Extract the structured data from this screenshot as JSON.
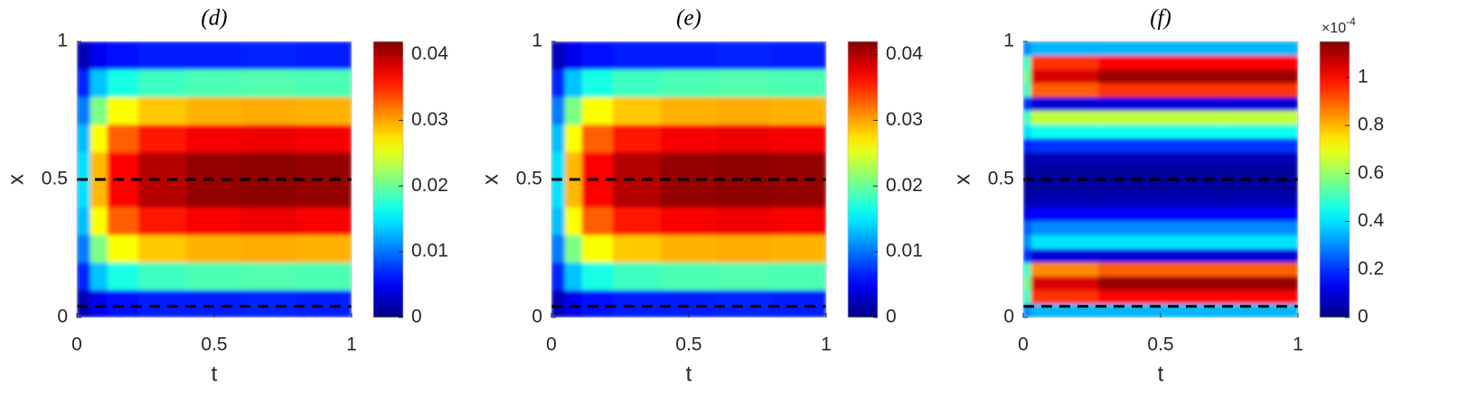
{
  "chart_data": [
    {
      "type": "heatmap",
      "title": "(d)",
      "xlabel": "t",
      "ylabel": "x",
      "colormap": "jet",
      "x": [
        0.025,
        0.075,
        0.15,
        0.3,
        0.5,
        0.7,
        0.9
      ],
      "y": [
        0.05,
        0.15,
        0.25,
        0.35,
        0.45,
        0.55,
        0.65,
        0.75,
        0.85,
        0.95
      ],
      "values": [
        [
          0.0023,
          0.0046,
          0.0058,
          0.0063,
          0.0065,
          0.0066,
          0.0065
        ],
        [
          0.0067,
          0.0133,
          0.0168,
          0.0183,
          0.0189,
          0.0191,
          0.0189
        ],
        [
          0.0104,
          0.0208,
          0.0261,
          0.0285,
          0.0294,
          0.0297,
          0.0294
        ],
        [
          0.0131,
          0.0262,
          0.0329,
          0.0359,
          0.037,
          0.0374,
          0.037
        ],
        [
          0.0145,
          0.0291,
          0.0365,
          0.0398,
          0.0411,
          0.0415,
          0.0411
        ],
        [
          0.0145,
          0.0291,
          0.0365,
          0.0398,
          0.0411,
          0.0415,
          0.0411
        ],
        [
          0.0131,
          0.0262,
          0.0329,
          0.0359,
          0.037,
          0.0374,
          0.037
        ],
        [
          0.0104,
          0.0208,
          0.0261,
          0.0285,
          0.0294,
          0.0297,
          0.0294
        ],
        [
          0.0067,
          0.0133,
          0.0168,
          0.0183,
          0.0189,
          0.0191,
          0.0189
        ],
        [
          0.0023,
          0.0046,
          0.0058,
          0.0063,
          0.0065,
          0.0066,
          0.0065
        ]
      ],
      "xlim": [
        0,
        1
      ],
      "ylim": [
        0,
        1
      ],
      "xticks": [
        0,
        0.5,
        1
      ],
      "yticks": [
        0,
        0.5,
        1
      ],
      "clim": [
        0,
        0.042
      ],
      "cticks": [
        0,
        0.01,
        0.02,
        0.03,
        0.04
      ],
      "hlines": [
        0.5,
        0.04
      ]
    },
    {
      "type": "heatmap",
      "title": "(e)",
      "xlabel": "t",
      "ylabel": "x",
      "colormap": "jet",
      "x": [
        0.025,
        0.075,
        0.15,
        0.3,
        0.5,
        0.7,
        0.9
      ],
      "y": [
        0.05,
        0.15,
        0.25,
        0.35,
        0.45,
        0.55,
        0.65,
        0.75,
        0.85,
        0.95
      ],
      "values": [
        [
          0.0023,
          0.0046,
          0.0058,
          0.0063,
          0.0065,
          0.0066,
          0.0065
        ],
        [
          0.0067,
          0.0133,
          0.0168,
          0.0183,
          0.0189,
          0.0191,
          0.0189
        ],
        [
          0.0104,
          0.0208,
          0.0261,
          0.0285,
          0.0294,
          0.0297,
          0.0294
        ],
        [
          0.0131,
          0.0262,
          0.0329,
          0.0359,
          0.037,
          0.0374,
          0.037
        ],
        [
          0.0145,
          0.0291,
          0.0365,
          0.0398,
          0.0411,
          0.0415,
          0.0411
        ],
        [
          0.0145,
          0.0291,
          0.0365,
          0.0398,
          0.0411,
          0.0415,
          0.0411
        ],
        [
          0.0131,
          0.0262,
          0.0329,
          0.0359,
          0.037,
          0.0374,
          0.037
        ],
        [
          0.0104,
          0.0208,
          0.0261,
          0.0285,
          0.0294,
          0.0297,
          0.0294
        ],
        [
          0.0067,
          0.0133,
          0.0168,
          0.0183,
          0.0189,
          0.0191,
          0.0189
        ],
        [
          0.0023,
          0.0046,
          0.0058,
          0.0063,
          0.0065,
          0.0066,
          0.0065
        ]
      ],
      "xlim": [
        0,
        1
      ],
      "ylim": [
        0,
        1
      ],
      "xticks": [
        0,
        0.5,
        1
      ],
      "yticks": [
        0,
        0.5,
        1
      ],
      "clim": [
        0,
        0.042
      ],
      "cticks": [
        0,
        0.01,
        0.02,
        0.03,
        0.04
      ],
      "hlines": [
        0.5,
        0.04
      ]
    },
    {
      "type": "heatmap",
      "title": "(f)",
      "xlabel": "t",
      "ylabel": "x",
      "colormap": "jet",
      "x": [
        0.01,
        0.05,
        0.5,
        0.95
      ],
      "y": [
        0.025,
        0.075,
        0.125,
        0.175,
        0.225,
        0.275,
        0.325,
        0.375,
        0.425,
        0.475,
        0.525,
        0.575,
        0.625,
        0.675,
        0.725,
        0.775,
        0.825,
        0.875,
        0.925,
        0.975
      ],
      "values": [
        [
          0.3,
          0.35,
          0.35,
          0.35
        ],
        [
          0.5,
          0.95,
          1.0,
          1.0
        ],
        [
          0.55,
          1.05,
          1.12,
          1.12
        ],
        [
          0.5,
          0.85,
          0.9,
          0.9
        ],
        [
          0.2,
          0.1,
          0.1,
          0.1
        ],
        [
          0.3,
          0.4,
          0.4,
          0.4
        ],
        [
          0.25,
          0.3,
          0.3,
          0.3
        ],
        [
          0.12,
          0.15,
          0.15,
          0.15
        ],
        [
          0.05,
          0.06,
          0.06,
          0.06
        ],
        [
          0.03,
          0.03,
          0.03,
          0.03
        ],
        [
          0.03,
          0.03,
          0.03,
          0.03
        ],
        [
          0.05,
          0.06,
          0.06,
          0.06
        ],
        [
          0.18,
          0.2,
          0.2,
          0.2
        ],
        [
          0.4,
          0.45,
          0.45,
          0.45
        ],
        [
          0.5,
          0.65,
          0.65,
          0.65
        ],
        [
          0.2,
          0.1,
          0.1,
          0.1
        ],
        [
          0.5,
          0.9,
          0.95,
          0.95
        ],
        [
          0.55,
          1.05,
          1.12,
          1.12
        ],
        [
          0.5,
          0.95,
          1.0,
          1.0
        ],
        [
          0.3,
          0.35,
          0.35,
          0.35
        ]
      ],
      "xlim": [
        0,
        1
      ],
      "ylim": [
        0,
        1
      ],
      "xticks": [
        0,
        0.5,
        1
      ],
      "yticks": [
        0,
        0.5,
        1
      ],
      "clim": [
        0,
        1.15
      ],
      "cticks": [
        0,
        0.2,
        0.4,
        0.6,
        0.8,
        1
      ],
      "colorbar_multiplier": {
        "base": "×10",
        "exponent": "-4"
      },
      "hlines": [
        0.5,
        0.04
      ]
    }
  ]
}
